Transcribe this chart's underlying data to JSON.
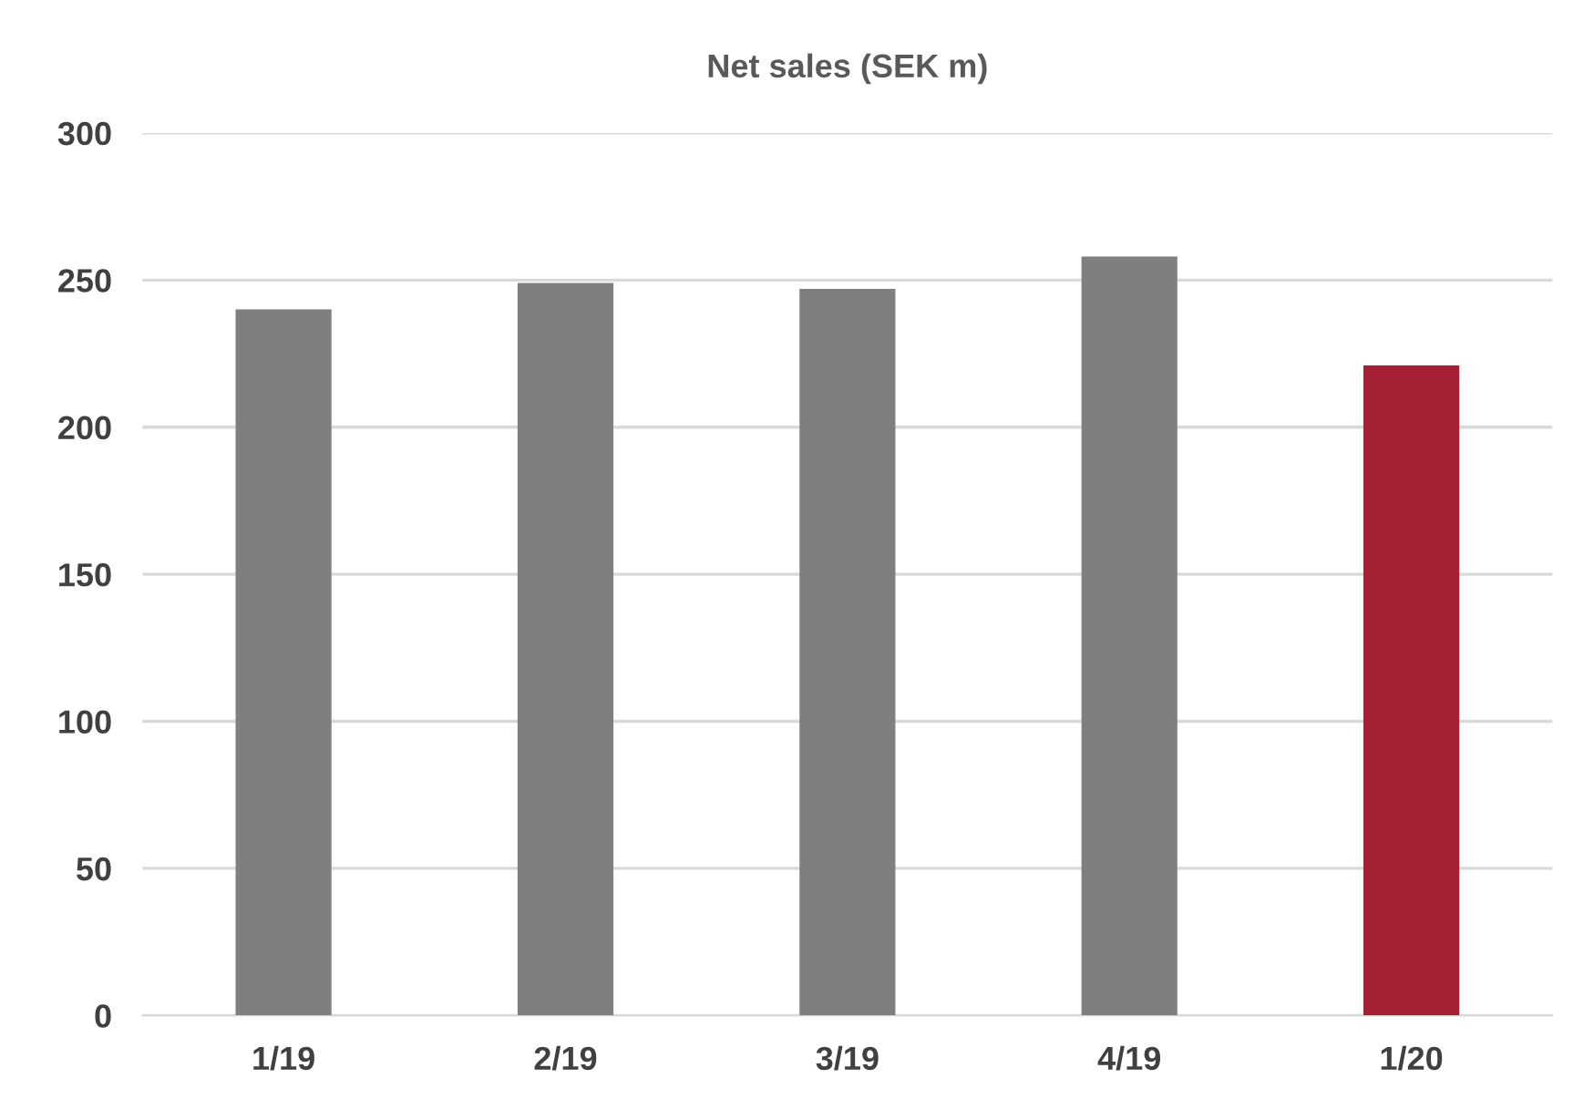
{
  "chart_data": {
    "type": "bar",
    "title": "Net sales (SEK m)",
    "categories": [
      "1/19",
      "2/19",
      "3/19",
      "4/19",
      "1/20"
    ],
    "values": [
      240,
      249,
      247,
      258,
      221
    ],
    "colors": [
      "#7f7f7f",
      "#7f7f7f",
      "#7f7f7f",
      "#7f7f7f",
      "#a32035"
    ],
    "ylim": [
      0,
      300
    ],
    "yticks": [
      0,
      50,
      100,
      150,
      200,
      250,
      300
    ],
    "grid": "y"
  }
}
